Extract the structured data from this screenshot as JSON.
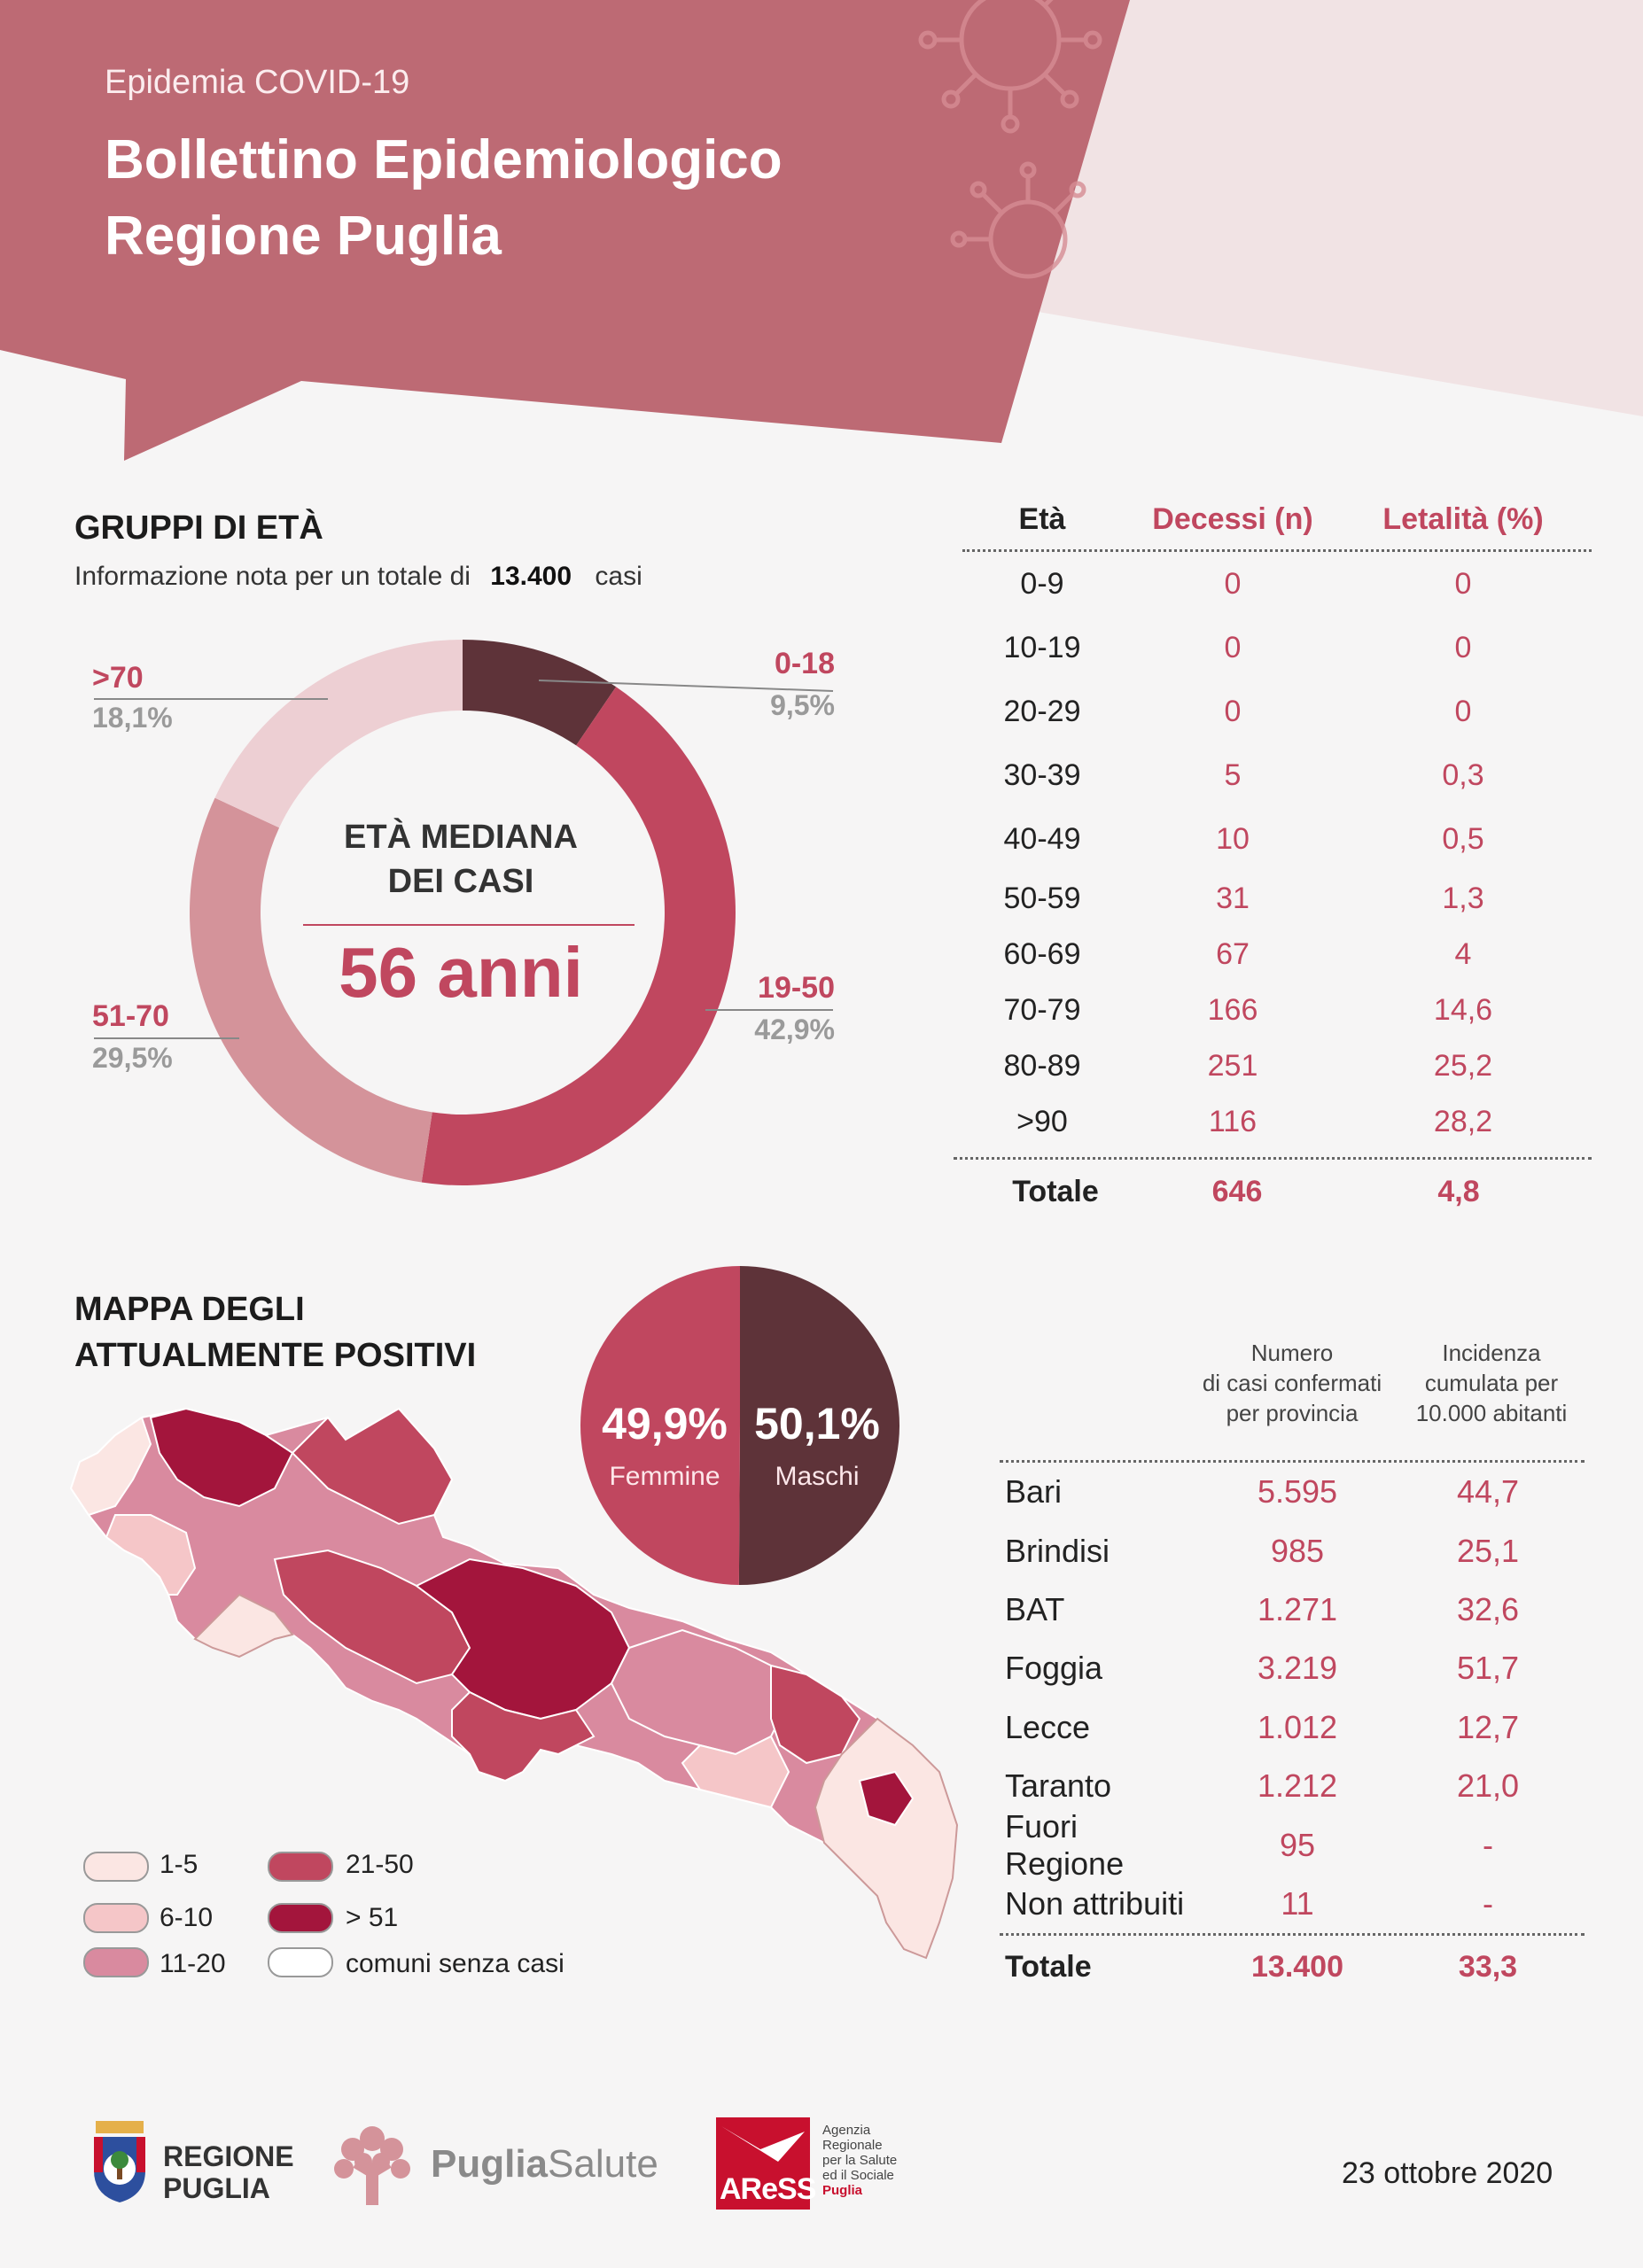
{
  "header": {
    "subtitle": "Epidemia COVID-19",
    "title_line1": "Bollettino Epidemiologico",
    "title_line2": "Regione Puglia"
  },
  "age_groups": {
    "title": "GRUPPI DI ETÀ",
    "note_prefix": "Informazione nota per un totale di",
    "note_total": "13.400",
    "note_suffix": "casi",
    "median_title_line1": "ETÀ MEDIANA",
    "median_title_line2": "DEI CASI",
    "median_value": "56 anni"
  },
  "chart_data": [
    {
      "type": "pie",
      "title": "GRUPPI DI ETÀ",
      "categories": [
        "0-18",
        "19-50",
        "51-70",
        ">70"
      ],
      "values": [
        9.5,
        42.9,
        29.5,
        18.1
      ],
      "labels": [
        "9,5%",
        "42,9%",
        "29,5%",
        "18,1%"
      ],
      "colors": [
        "#5e3339",
        "#c0475f",
        "#d4939a",
        "#edcfd3"
      ]
    },
    {
      "type": "pie",
      "categories": [
        "Femmine",
        "Maschi"
      ],
      "values": [
        49.9,
        50.1
      ],
      "labels": [
        "49,9%",
        "50,1%"
      ],
      "colors": [
        "#c0475f",
        "#5e3339"
      ]
    },
    {
      "type": "table",
      "columns": [
        "Età",
        "Decessi (n)",
        "Letalità (%)"
      ],
      "rows": [
        [
          "0-9",
          "0",
          "0"
        ],
        [
          "10-19",
          "0",
          "0"
        ],
        [
          "20-29",
          "0",
          "0"
        ],
        [
          "30-39",
          "5",
          "0,3"
        ],
        [
          "40-49",
          "10",
          "0,5"
        ],
        [
          "50-59",
          "31",
          "1,3"
        ],
        [
          "60-69",
          "67",
          "4"
        ],
        [
          "70-79",
          "166",
          "14,6"
        ],
        [
          "80-89",
          "251",
          "25,2"
        ],
        [
          ">90",
          "116",
          "28,2"
        ]
      ],
      "total": [
        "Totale",
        "646",
        "4,8"
      ]
    },
    {
      "type": "table",
      "columns": [
        "",
        "Numero di casi confermati per provincia",
        "Incidenza cumulata per 10.000 abitanti"
      ],
      "header_lines": [
        [
          "Numero",
          "di casi confermati",
          "per provincia"
        ],
        [
          "Incidenza",
          "cumulata per",
          "10.000 abitanti"
        ]
      ],
      "rows": [
        [
          "Bari",
          "5.595",
          "44,7"
        ],
        [
          "Brindisi",
          "985",
          "25,1"
        ],
        [
          "BAT",
          "1.271",
          "32,6"
        ],
        [
          "Foggia",
          "3.219",
          "51,7"
        ],
        [
          "Lecce",
          "1.012",
          "12,7"
        ],
        [
          "Taranto",
          "1.212",
          "21,0"
        ],
        [
          "Fuori Regione",
          "95",
          "-"
        ],
        [
          "Non attribuiti",
          "11",
          "-"
        ]
      ],
      "total": [
        "Totale",
        "13.400",
        "33,3"
      ]
    }
  ],
  "map": {
    "title_line1": "MAPPA DEGLI",
    "title_line2": "ATTUALMENTE POSITIVI",
    "legend": [
      {
        "label": "1-5",
        "color": "#fbe6e3"
      },
      {
        "label": "6-10",
        "color": "#f5c6c8"
      },
      {
        "label": "11-20",
        "color": "#d98a9f"
      },
      {
        "label": "21-50",
        "color": "#c0475f"
      },
      {
        "label": "> 51",
        "color": "#a3153c"
      },
      {
        "label": "comuni senza casi",
        "color": "#ffffff"
      }
    ]
  },
  "sex": {
    "female_label": "Femmine",
    "male_label": "Maschi"
  },
  "footer": {
    "regione_line1": "REGIONE",
    "regione_line2": "PUGLIA",
    "puglia": "Puglia",
    "salute": "Salute",
    "aress": "AReSS",
    "aress_lines": [
      "Agenzia",
      "Regionale",
      "per la Salute",
      "ed il Sociale"
    ],
    "aress_puglia": "Puglia",
    "date": "23 ottobre 2020"
  }
}
